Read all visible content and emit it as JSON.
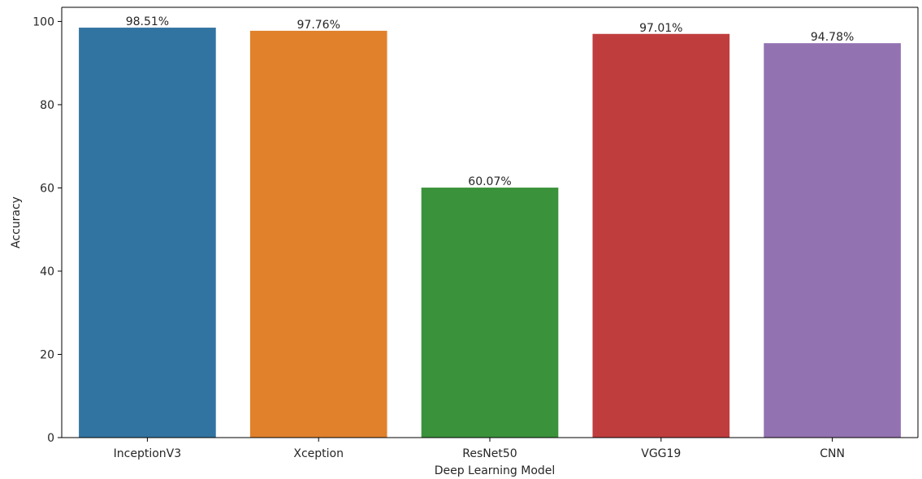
{
  "chart_data": {
    "type": "bar",
    "title": "",
    "xlabel": "Deep Learning Model",
    "ylabel": "Accuracy",
    "categories": [
      "InceptionV3",
      "Xception",
      "ResNet50",
      "VGG19",
      "CNN"
    ],
    "values": [
      98.51,
      97.76,
      60.07,
      97.01,
      94.78
    ],
    "data_labels": [
      "98.51%",
      "97.76%",
      "60.07%",
      "97.01%",
      "94.78%"
    ],
    "colors": [
      "#3274a1",
      "#e1812c",
      "#3a923a",
      "#c03d3e",
      "#9372b2"
    ],
    "ylim": [
      0,
      103.4
    ],
    "yticks": [
      0,
      20,
      40,
      60,
      80,
      100
    ],
    "ytick_labels": [
      "0",
      "20",
      "40",
      "60",
      "80",
      "100"
    ],
    "grid": false,
    "legend": "none"
  }
}
